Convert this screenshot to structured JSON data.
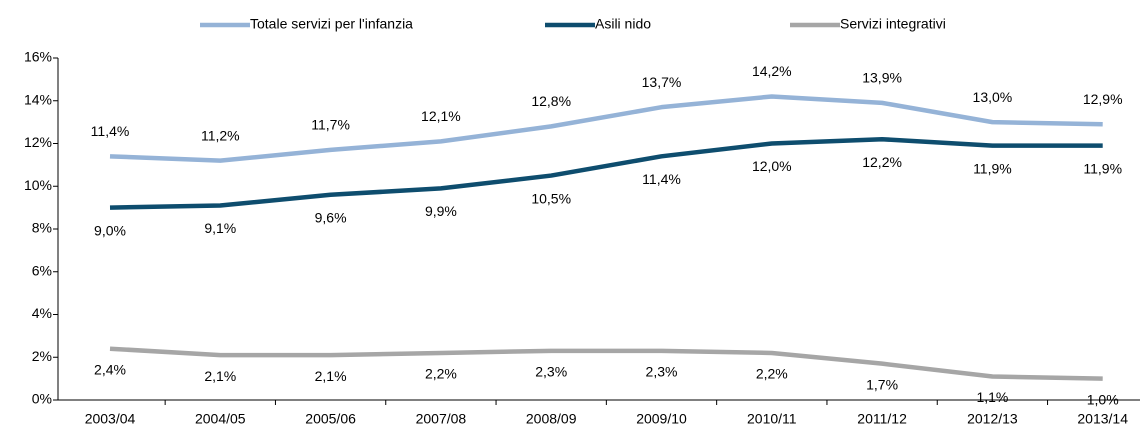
{
  "chart_data": {
    "type": "line",
    "categories": [
      "2003/04",
      "2004/05",
      "2005/06",
      "2007/08",
      "2008/09",
      "2009/10",
      "2010/11",
      "2011/12",
      "2012/13",
      "2013/14"
    ],
    "series": [
      {
        "name": "Totale servizi per l'infanzia",
        "color": "#95b3d7",
        "values": [
          11.4,
          11.2,
          11.7,
          12.1,
          12.8,
          13.7,
          14.2,
          13.9,
          13.0,
          12.9
        ],
        "value_labels": [
          "11,4%",
          "11,2%",
          "11,7%",
          "12,1%",
          "12,8%",
          "13,7%",
          "14,2%",
          "13,9%",
          "13,0%",
          "12,9%"
        ]
      },
      {
        "name": "Asili nido",
        "color": "#0e4d6e",
        "values": [
          9.0,
          9.1,
          9.6,
          9.9,
          10.5,
          11.4,
          12.0,
          12.2,
          11.9,
          11.9
        ],
        "value_labels": [
          "9,0%",
          "9,1%",
          "9,6%",
          "9,9%",
          "10,5%",
          "11,4%",
          "12,0%",
          "12,2%",
          "11,9%",
          "11,9%"
        ]
      },
      {
        "name": "Servizi integrativi",
        "color": "#a6a6a6",
        "values": [
          2.4,
          2.1,
          2.1,
          2.2,
          2.3,
          2.3,
          2.2,
          1.7,
          1.1,
          1.0
        ],
        "value_labels": [
          "2,4%",
          "2,1%",
          "2,1%",
          "2,2%",
          "2,3%",
          "2,3%",
          "2,2%",
          "1,7%",
          "1,1%",
          "1,0%"
        ]
      }
    ],
    "ylim": [
      0,
      16
    ],
    "yticks": [
      {
        "value": 0,
        "label": "0%"
      },
      {
        "value": 2,
        "label": "2%"
      },
      {
        "value": 4,
        "label": "4%"
      },
      {
        "value": 6,
        "label": "6%"
      },
      {
        "value": 8,
        "label": "8%"
      },
      {
        "value": 10,
        "label": "10%"
      },
      {
        "value": 12,
        "label": "12%"
      },
      {
        "value": 14,
        "label": "14%"
      },
      {
        "value": 16,
        "label": "16%"
      }
    ],
    "grid": false,
    "legend": "top"
  }
}
